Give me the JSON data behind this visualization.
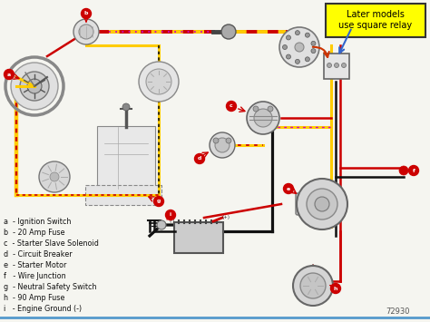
{
  "background_color": "#f5f5f0",
  "callout_text": "Later models\nuse square relay",
  "callout_bg": "#ffff00",
  "callout_border": "#333333",
  "diagram_number": "72930",
  "wire_red": "#cc0000",
  "wire_yellow": "#ffcc00",
  "wire_black": "#111111",
  "wire_purple": "#cc00cc",
  "legend_items": [
    "a  - Ignition Switch",
    "b  - 20 Amp Fuse",
    "c  - Starter Slave Solenoid",
    "d  - Circuit Breaker",
    "e  - Starter Motor",
    "f   - Wire Junction",
    "g  - Neutral Safety Switch",
    "h  - 90 Amp Fuse",
    "i   - Engine Ground (-)"
  ]
}
